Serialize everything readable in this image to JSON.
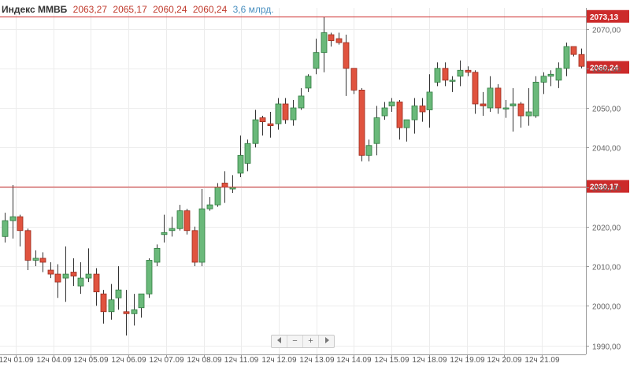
{
  "header": {
    "title": "Индекс ММВБ",
    "open": "2063,27",
    "high": "2065,17",
    "low": "2060,24",
    "close": "2060,24",
    "volume": "3,6 млрд."
  },
  "navigator": {
    "left_icon": "triangle-left-icon",
    "zoom_out_label": "−",
    "zoom_in_label": "+",
    "right_icon": "triangle-right-icon"
  },
  "colors": {
    "up_fill": "#6ab97a",
    "up_border": "#2f7a3f",
    "down_fill": "#e0533f",
    "down_border": "#9a2a1c",
    "wick": "#333333",
    "level_line": "#cc2b2b",
    "current_badge": "#cc2b2b",
    "grid": "#ececec"
  },
  "chart_data": {
    "type": "candlestick",
    "title": "Индекс ММВБ",
    "ylim": [
      1987,
      2075
    ],
    "y_ticks": [
      "1990,00",
      "2000,00",
      "2010,00",
      "2020,00",
      "2030,00",
      "2040,00",
      "2050,00",
      "2060,00",
      "2070,00"
    ],
    "y_tick_values": [
      1990,
      2000,
      2010,
      2020,
      2030,
      2040,
      2050,
      2060,
      2070
    ],
    "x_ticks": [
      "12ч 01.09",
      "12ч 04.09",
      "12ч 05.09",
      "12ч 06.09",
      "12ч 07.09",
      "12ч 08.09",
      "12ч 11.09",
      "12ч 12.09",
      "12ч 13.09",
      "12ч 14.09",
      "12ч 15.09",
      "12ч 18.09",
      "12ч 19.09",
      "12ч 20.09",
      "12ч 21.09"
    ],
    "levels": [
      {
        "value": 2073.13,
        "label": "2073,13"
      },
      {
        "value": 2030.17,
        "label": "2030,17"
      }
    ],
    "current": {
      "value": 2060.24,
      "label": "2060,24"
    },
    "grid": true,
    "candles": [
      {
        "o": 2017.5,
        "h": 2023.5,
        "l": 2016.0,
        "c": 2021.5
      },
      {
        "o": 2021.5,
        "h": 2030.5,
        "l": 2017.0,
        "c": 2022.5
      },
      {
        "o": 2022.5,
        "h": 2023.0,
        "l": 2015.0,
        "c": 2019.0
      },
      {
        "o": 2019.0,
        "h": 2019.5,
        "l": 2009.0,
        "c": 2011.5
      },
      {
        "o": 2011.5,
        "h": 2014.0,
        "l": 2010.0,
        "c": 2012.0
      },
      {
        "o": 2012.0,
        "h": 2013.5,
        "l": 2008.5,
        "c": 2011.0
      },
      {
        "o": 2009.0,
        "h": 2011.0,
        "l": 2007.0,
        "c": 2008.0
      },
      {
        "o": 2008.0,
        "h": 2010.5,
        "l": 2002.0,
        "c": 2006.0
      },
      {
        "o": 2007.0,
        "h": 2015.0,
        "l": 2001.0,
        "c": 2008.0
      },
      {
        "o": 2008.5,
        "h": 2012.0,
        "l": 2005.0,
        "c": 2007.5
      },
      {
        "o": 2005.0,
        "h": 2011.0,
        "l": 2003.0,
        "c": 2007.0
      },
      {
        "o": 2007.0,
        "h": 2014.5,
        "l": 2006.0,
        "c": 2008.0
      },
      {
        "o": 2008.0,
        "h": 2009.5,
        "l": 2000.0,
        "c": 2003.5
      },
      {
        "o": 2003.0,
        "h": 2004.0,
        "l": 1995.5,
        "c": 1998.5
      },
      {
        "o": 1998.5,
        "h": 2005.5,
        "l": 1996.5,
        "c": 2001.5
      },
      {
        "o": 2002.0,
        "h": 2010.0,
        "l": 1999.0,
        "c": 2004.0
      },
      {
        "o": 1998.5,
        "h": 2004.0,
        "l": 1992.5,
        "c": 1998.0
      },
      {
        "o": 1998.0,
        "h": 2003.0,
        "l": 1995.0,
        "c": 1999.0
      },
      {
        "o": 1999.5,
        "h": 2003.0,
        "l": 1997.0,
        "c": 2003.0
      },
      {
        "o": 2003.0,
        "h": 2012.0,
        "l": 2002.0,
        "c": 2011.5
      },
      {
        "o": 2011.0,
        "h": 2015.5,
        "l": 2010.0,
        "c": 2014.5
      },
      {
        "o": 2018.0,
        "h": 2023.0,
        "l": 2016.0,
        "c": 2018.5
      },
      {
        "o": 2019.0,
        "h": 2022.5,
        "l": 2017.5,
        "c": 2019.5
      },
      {
        "o": 2019.5,
        "h": 2025.5,
        "l": 2019.0,
        "c": 2024.0
      },
      {
        "o": 2024.0,
        "h": 2024.5,
        "l": 2018.0,
        "c": 2019.0
      },
      {
        "o": 2019.0,
        "h": 2020.0,
        "l": 2010.0,
        "c": 2011.0
      },
      {
        "o": 2011.0,
        "h": 2029.5,
        "l": 2010.0,
        "c": 2024.5
      },
      {
        "o": 2024.5,
        "h": 2027.5,
        "l": 2024.0,
        "c": 2025.5
      },
      {
        "o": 2025.5,
        "h": 2031.0,
        "l": 2025.0,
        "c": 2030.0
      },
      {
        "o": 2031.0,
        "h": 2034.0,
        "l": 2026.0,
        "c": 2030.0
      },
      {
        "o": 2029.5,
        "h": 2033.0,
        "l": 2028.5,
        "c": 2030.0
      },
      {
        "o": 2033.5,
        "h": 2043.0,
        "l": 2032.5,
        "c": 2038.0
      },
      {
        "o": 2036.0,
        "h": 2042.0,
        "l": 2034.0,
        "c": 2041.0
      },
      {
        "o": 2041.0,
        "h": 2049.5,
        "l": 2040.0,
        "c": 2047.0
      },
      {
        "o": 2047.5,
        "h": 2048.0,
        "l": 2043.0,
        "c": 2046.5
      },
      {
        "o": 2046.0,
        "h": 2049.0,
        "l": 2042.5,
        "c": 2045.5
      },
      {
        "o": 2046.0,
        "h": 2052.5,
        "l": 2044.5,
        "c": 2051.0
      },
      {
        "o": 2051.0,
        "h": 2052.5,
        "l": 2046.0,
        "c": 2047.0
      },
      {
        "o": 2047.0,
        "h": 2052.0,
        "l": 2045.5,
        "c": 2050.0
      },
      {
        "o": 2050.0,
        "h": 2055.0,
        "l": 2049.5,
        "c": 2053.0
      },
      {
        "o": 2055.0,
        "h": 2058.5,
        "l": 2054.0,
        "c": 2058.0
      },
      {
        "o": 2060.0,
        "h": 2067.5,
        "l": 2058.5,
        "c": 2064.0
      },
      {
        "o": 2064.0,
        "h": 2073.0,
        "l": 2059.0,
        "c": 2069.0
      },
      {
        "o": 2068.5,
        "h": 2069.0,
        "l": 2065.5,
        "c": 2067.0
      },
      {
        "o": 2067.5,
        "h": 2069.0,
        "l": 2066.0,
        "c": 2066.5
      },
      {
        "o": 2066.5,
        "h": 2068.5,
        "l": 2053.0,
        "c": 2060.0
      },
      {
        "o": 2060.0,
        "h": 2060.0,
        "l": 2053.5,
        "c": 2054.5
      },
      {
        "o": 2054.5,
        "h": 2055.0,
        "l": 2036.5,
        "c": 2038.0
      },
      {
        "o": 2038.0,
        "h": 2042.0,
        "l": 2036.5,
        "c": 2040.5
      },
      {
        "o": 2041.0,
        "h": 2050.5,
        "l": 2038.0,
        "c": 2047.5
      },
      {
        "o": 2048.0,
        "h": 2051.5,
        "l": 2047.0,
        "c": 2050.0
      },
      {
        "o": 2050.5,
        "h": 2052.5,
        "l": 2049.0,
        "c": 2051.5
      },
      {
        "o": 2051.5,
        "h": 2052.0,
        "l": 2042.0,
        "c": 2045.0
      },
      {
        "o": 2045.0,
        "h": 2047.0,
        "l": 2041.5,
        "c": 2047.0
      },
      {
        "o": 2047.0,
        "h": 2052.5,
        "l": 2043.5,
        "c": 2050.5
      },
      {
        "o": 2050.5,
        "h": 2052.5,
        "l": 2046.5,
        "c": 2049.0
      },
      {
        "o": 2049.5,
        "h": 2058.5,
        "l": 2045.0,
        "c": 2054.0
      },
      {
        "o": 2056.5,
        "h": 2061.5,
        "l": 2055.5,
        "c": 2060.0
      },
      {
        "o": 2060.0,
        "h": 2061.5,
        "l": 2055.5,
        "c": 2057.0
      },
      {
        "o": 2057.0,
        "h": 2058.0,
        "l": 2054.0,
        "c": 2057.0
      },
      {
        "o": 2058.0,
        "h": 2062.0,
        "l": 2055.5,
        "c": 2059.5
      },
      {
        "o": 2059.5,
        "h": 2060.5,
        "l": 2058.0,
        "c": 2059.0
      },
      {
        "o": 2059.0,
        "h": 2059.5,
        "l": 2048.5,
        "c": 2051.0
      },
      {
        "o": 2051.0,
        "h": 2054.0,
        "l": 2048.0,
        "c": 2050.5
      },
      {
        "o": 2050.0,
        "h": 2058.0,
        "l": 2049.0,
        "c": 2055.0
      },
      {
        "o": 2055.0,
        "h": 2056.0,
        "l": 2048.5,
        "c": 2050.0
      },
      {
        "o": 2050.0,
        "h": 2052.0,
        "l": 2047.5,
        "c": 2050.0
      },
      {
        "o": 2050.5,
        "h": 2055.0,
        "l": 2044.0,
        "c": 2051.0
      },
      {
        "o": 2051.0,
        "h": 2051.5,
        "l": 2045.0,
        "c": 2048.0
      },
      {
        "o": 2048.0,
        "h": 2055.0,
        "l": 2045.5,
        "c": 2049.0
      },
      {
        "o": 2048.0,
        "h": 2058.0,
        "l": 2047.5,
        "c": 2056.5
      },
      {
        "o": 2056.5,
        "h": 2059.0,
        "l": 2053.5,
        "c": 2058.0
      },
      {
        "o": 2058.0,
        "h": 2059.5,
        "l": 2055.5,
        "c": 2058.5
      },
      {
        "o": 2057.0,
        "h": 2061.5,
        "l": 2055.0,
        "c": 2060.0
      },
      {
        "o": 2060.0,
        "h": 2066.5,
        "l": 2058.0,
        "c": 2065.5
      },
      {
        "o": 2065.5,
        "h": 2065.5,
        "l": 2063.0,
        "c": 2063.5
      },
      {
        "o": 2063.5,
        "h": 2065.0,
        "l": 2060.0,
        "c": 2060.5
      }
    ]
  }
}
